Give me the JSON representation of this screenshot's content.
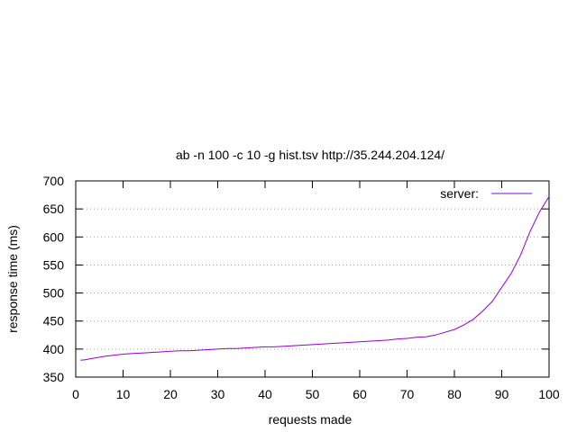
{
  "chart_data": {
    "type": "line",
    "title": "ab -n 100 -c 10 -g hist.tsv http://35.244.204.124/",
    "xlabel": "requests made",
    "ylabel": "response time (ms)",
    "xlim": [
      0,
      100
    ],
    "ylim": [
      350,
      700
    ],
    "x_ticks": [
      0,
      10,
      20,
      30,
      40,
      50,
      60,
      70,
      80,
      90,
      100
    ],
    "y_ticks": [
      350,
      400,
      450,
      500,
      550,
      600,
      650,
      700
    ],
    "grid": "horizontal-dotted",
    "legend_position": "top-right",
    "series": [
      {
        "name": "server:",
        "color": "#9400d3",
        "x": [
          1,
          2,
          4,
          6,
          8,
          10,
          12,
          14,
          16,
          18,
          20,
          22,
          24,
          26,
          28,
          30,
          32,
          34,
          36,
          38,
          40,
          42,
          44,
          46,
          48,
          50,
          52,
          54,
          56,
          58,
          60,
          62,
          64,
          66,
          68,
          70,
          72,
          74,
          76,
          78,
          80,
          82,
          84,
          86,
          88,
          90,
          92,
          94,
          96,
          98,
          100
        ],
        "values": [
          380,
          381,
          384,
          387,
          389,
          391,
          392,
          393,
          394,
          395,
          396,
          397,
          397,
          398,
          399,
          400,
          401,
          401,
          402,
          403,
          404,
          404,
          405,
          406,
          407,
          408,
          409,
          410,
          411,
          412,
          413,
          414,
          415,
          416,
          418,
          419,
          421,
          422,
          425,
          430,
          435,
          443,
          453,
          468,
          485,
          510,
          535,
          568,
          610,
          645,
          672
        ]
      }
    ]
  }
}
